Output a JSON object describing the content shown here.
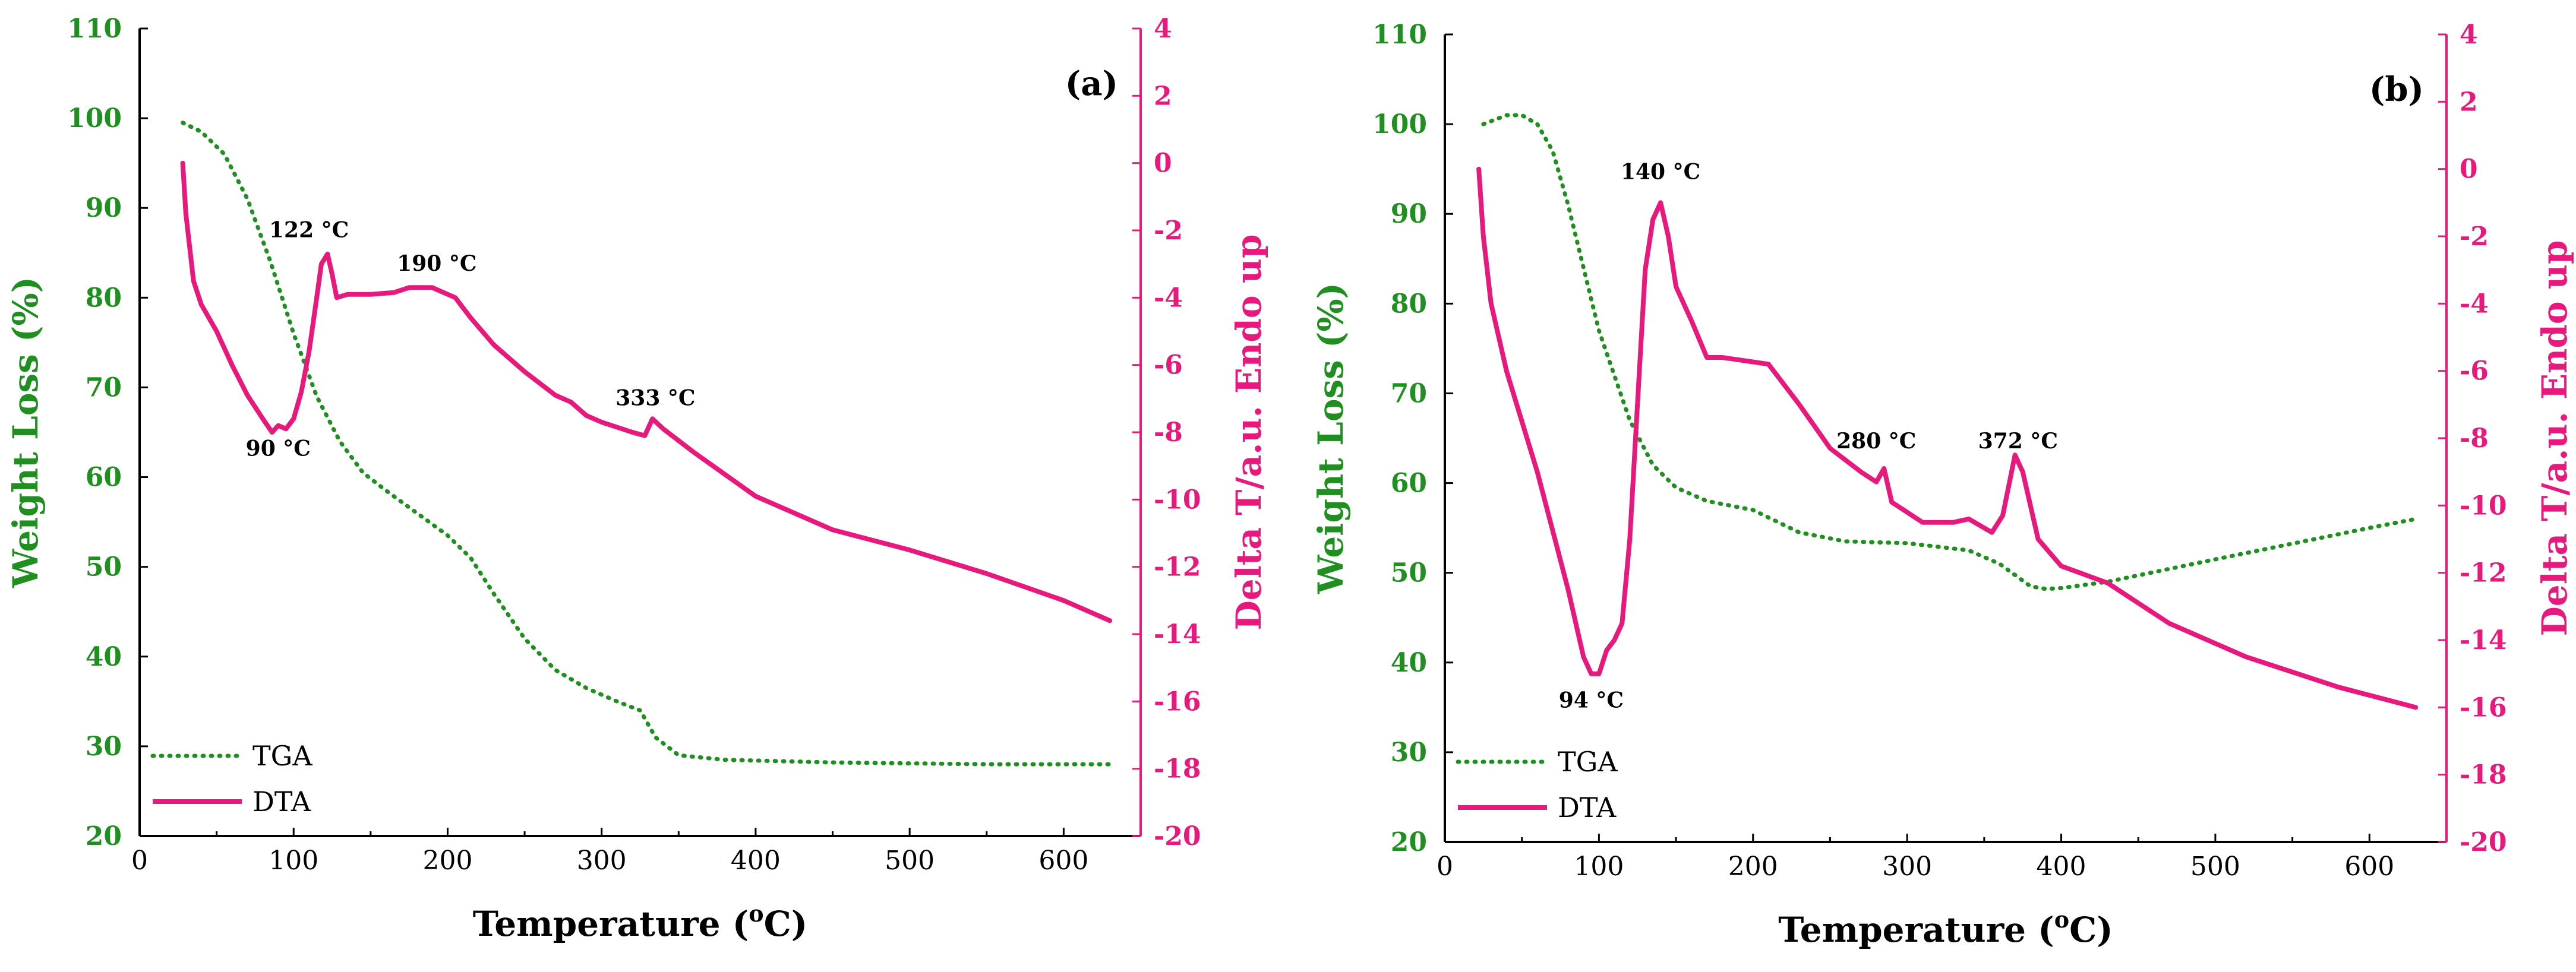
{
  "colors": {
    "tga": "#1f8f1f",
    "dta": "#e8197c",
    "axis": "#000000"
  },
  "chart_data": [
    {
      "type": "line",
      "panel_label": "(a)",
      "xlabel_main": "Temperature (",
      "xlabel_sup": "o",
      "xlabel_end": "C)",
      "ylabel": "Weight Loss (%)",
      "y2label": "Delta T/a.u. Endo up",
      "xlim": [
        0,
        650
      ],
      "ylim": [
        20,
        110
      ],
      "y2lim": [
        -20,
        4
      ],
      "xticks": [
        "0",
        "100",
        "200",
        "300",
        "400",
        "500",
        "600"
      ],
      "yticks": [
        "20",
        "30",
        "40",
        "50",
        "60",
        "70",
        "80",
        "90",
        "100",
        "110"
      ],
      "y2ticks": [
        "4",
        "2",
        "0",
        "-2",
        "-4",
        "-6",
        "-8",
        "-10",
        "-12",
        "-14",
        "-16",
        "-18",
        "-20"
      ],
      "legend": [
        "TGA",
        "DTA"
      ],
      "series": [
        {
          "name": "TGA",
          "axis": "left",
          "style": "dotted",
          "x": [
            28,
            40,
            55,
            70,
            85,
            100,
            115,
            130,
            145,
            160,
            180,
            200,
            215,
            230,
            250,
            270,
            290,
            310,
            325,
            335,
            350,
            380,
            450,
            550,
            630
          ],
          "y": [
            99.5,
            98.5,
            96,
            91,
            84,
            76,
            69,
            64,
            60.5,
            58.5,
            56,
            53.5,
            51,
            47,
            42,
            38.5,
            36.5,
            35,
            34,
            31,
            29,
            28.5,
            28.2,
            28,
            28
          ]
        },
        {
          "name": "DTA",
          "axis": "right",
          "style": "solid",
          "x": [
            28,
            30,
            35,
            40,
            50,
            60,
            70,
            80,
            86,
            90,
            95,
            100,
            105,
            110,
            115,
            118,
            122,
            125,
            128,
            135,
            150,
            165,
            175,
            190,
            205,
            215,
            230,
            250,
            270,
            280,
            290,
            300,
            320,
            328,
            333,
            340,
            360,
            400,
            450,
            500,
            550,
            600,
            630
          ],
          "y": [
            0,
            -1.5,
            -3.5,
            -4.2,
            -5,
            -6,
            -6.9,
            -7.6,
            -8,
            -7.8,
            -7.9,
            -7.6,
            -6.8,
            -5.6,
            -4,
            -3,
            -2.7,
            -3.3,
            -4,
            -3.9,
            -3.9,
            -3.85,
            -3.7,
            -3.7,
            -4,
            -4.6,
            -5.4,
            -6.2,
            -6.9,
            -7.1,
            -7.5,
            -7.7,
            -8,
            -8.1,
            -7.6,
            -7.9,
            -8.6,
            -9.9,
            -10.9,
            -11.5,
            -12.2,
            -13,
            -13.6
          ]
        }
      ],
      "annotations": [
        {
          "text": "122 °C",
          "x": 110,
          "y2": -2.2
        },
        {
          "text": "90 °C",
          "x": 90,
          "y2": -8.7
        },
        {
          "text": "190 °C",
          "x": 193,
          "y2": -3.2
        },
        {
          "text": "333 °C",
          "x": 335,
          "y2": -7.2
        }
      ]
    },
    {
      "type": "line",
      "panel_label": "(b)",
      "xlabel_main": "Temperature (",
      "xlabel_sup": "o",
      "xlabel_end": "C)",
      "ylabel": "Weight Loss (%)",
      "y2label": "Delta T/a.u. Endo up",
      "xlim": [
        0,
        650
      ],
      "ylim": [
        20,
        110
      ],
      "y2lim": [
        -20,
        4
      ],
      "xticks": [
        "0",
        "100",
        "200",
        "300",
        "400",
        "500",
        "600"
      ],
      "yticks": [
        "20",
        "30",
        "40",
        "50",
        "60",
        "70",
        "80",
        "90",
        "100",
        "110"
      ],
      "y2ticks": [
        "4",
        "2",
        "0",
        "-2",
        "-4",
        "-6",
        "-8",
        "-10",
        "-12",
        "-14",
        "-16",
        "-18",
        "-20"
      ],
      "legend": [
        "TGA",
        "DTA"
      ],
      "series": [
        {
          "name": "TGA",
          "axis": "left",
          "style": "dotted",
          "x": [
            25,
            40,
            50,
            60,
            70,
            80,
            90,
            100,
            110,
            120,
            135,
            150,
            170,
            200,
            230,
            260,
            300,
            340,
            360,
            380,
            390,
            400,
            430,
            500,
            600,
            630
          ],
          "y": [
            100,
            101,
            101,
            100,
            97,
            91,
            84,
            77,
            72,
            67,
            62,
            59.5,
            58,
            57,
            54.5,
            53.5,
            53.3,
            52.5,
            51,
            48.5,
            48.2,
            48.3,
            49,
            51.5,
            55,
            56
          ]
        },
        {
          "name": "DTA",
          "axis": "right",
          "style": "solid",
          "x": [
            22,
            25,
            30,
            40,
            60,
            80,
            90,
            95,
            100,
            105,
            110,
            115,
            120,
            125,
            130,
            135,
            140,
            145,
            150,
            160,
            170,
            180,
            210,
            230,
            250,
            270,
            280,
            285,
            290,
            310,
            330,
            340,
            355,
            362,
            370,
            375,
            385,
            400,
            430,
            470,
            520,
            580,
            630
          ],
          "y": [
            0,
            -2,
            -4,
            -6,
            -9,
            -12.5,
            -14.5,
            -15,
            -15,
            -14.3,
            -14,
            -13.5,
            -11,
            -7,
            -3,
            -1.5,
            -1,
            -2,
            -3.5,
            -4.5,
            -5.6,
            -5.6,
            -5.8,
            -7,
            -8.3,
            -9,
            -9.3,
            -8.9,
            -9.9,
            -10.5,
            -10.5,
            -10.4,
            -10.8,
            -10.3,
            -8.5,
            -9,
            -11,
            -11.8,
            -12.3,
            -13.5,
            -14.5,
            -15.4,
            -16
          ]
        }
      ],
      "annotations": [
        {
          "text": "140 °C",
          "x": 140,
          "y2": -0.3
        },
        {
          "text": "94 °C",
          "x": 95,
          "y2": -16
        },
        {
          "text": "280 °C",
          "x": 280,
          "y2": -8.3
        },
        {
          "text": "372 °C",
          "x": 372,
          "y2": -8.3
        }
      ]
    }
  ]
}
